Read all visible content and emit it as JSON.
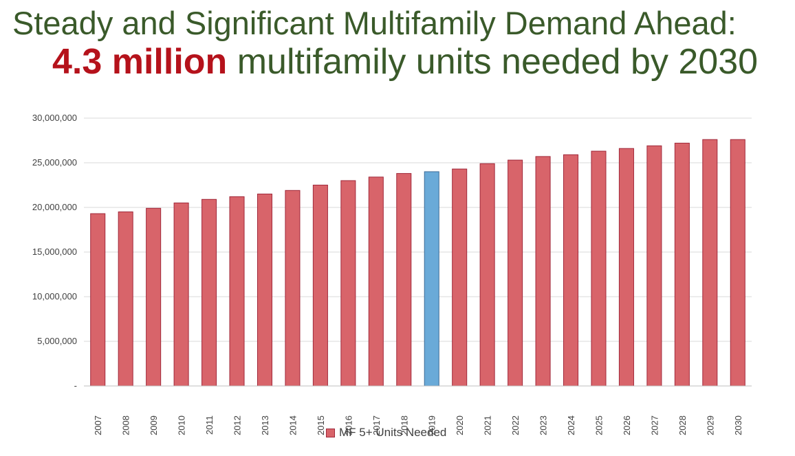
{
  "title": {
    "line1": "Steady and Significant Multifamily Demand Ahead:",
    "highlight": "4.3 million",
    "rest": " multifamily units needed by 2030"
  },
  "colors": {
    "bar": "#d8646a",
    "bar_border": "#a0283a",
    "highlight_bar": "#6aaad8",
    "highlight_border": "#3c6a96",
    "title_green": "#3a5a2a",
    "title_red": "#b5121b",
    "grid": "#d9d9d9"
  },
  "chart_data": {
    "type": "bar",
    "categories": [
      "2007",
      "2008",
      "2009",
      "2010",
      "2011",
      "2012",
      "2013",
      "2014",
      "2015",
      "2016",
      "2017",
      "2018",
      "2019",
      "2020",
      "2021",
      "2022",
      "2023",
      "2024",
      "2025",
      "2026",
      "2027",
      "2028",
      "2029",
      "2030"
    ],
    "series": [
      {
        "name": "MF 5+ Units Needed",
        "values": [
          19300000,
          19500000,
          19900000,
          20500000,
          20900000,
          21200000,
          21500000,
          21900000,
          22500000,
          23000000,
          23400000,
          23800000,
          24000000,
          24300000,
          24900000,
          25300000,
          25700000,
          25900000,
          26300000,
          26600000,
          26900000,
          27200000,
          27600000,
          27600000
        ]
      }
    ],
    "highlight_category": "2019",
    "ylim": [
      0,
      30000000
    ],
    "yticks": [
      0,
      5000000,
      10000000,
      15000000,
      20000000,
      25000000,
      30000000
    ],
    "ytick_labels": [
      "-",
      "5,000,000",
      "10,000,000",
      "15,000,000",
      "20,000,000",
      "25,000,000",
      "30,000,000"
    ],
    "grid": true,
    "legend_position": "bottom-center",
    "xlabel": "",
    "ylabel": ""
  }
}
